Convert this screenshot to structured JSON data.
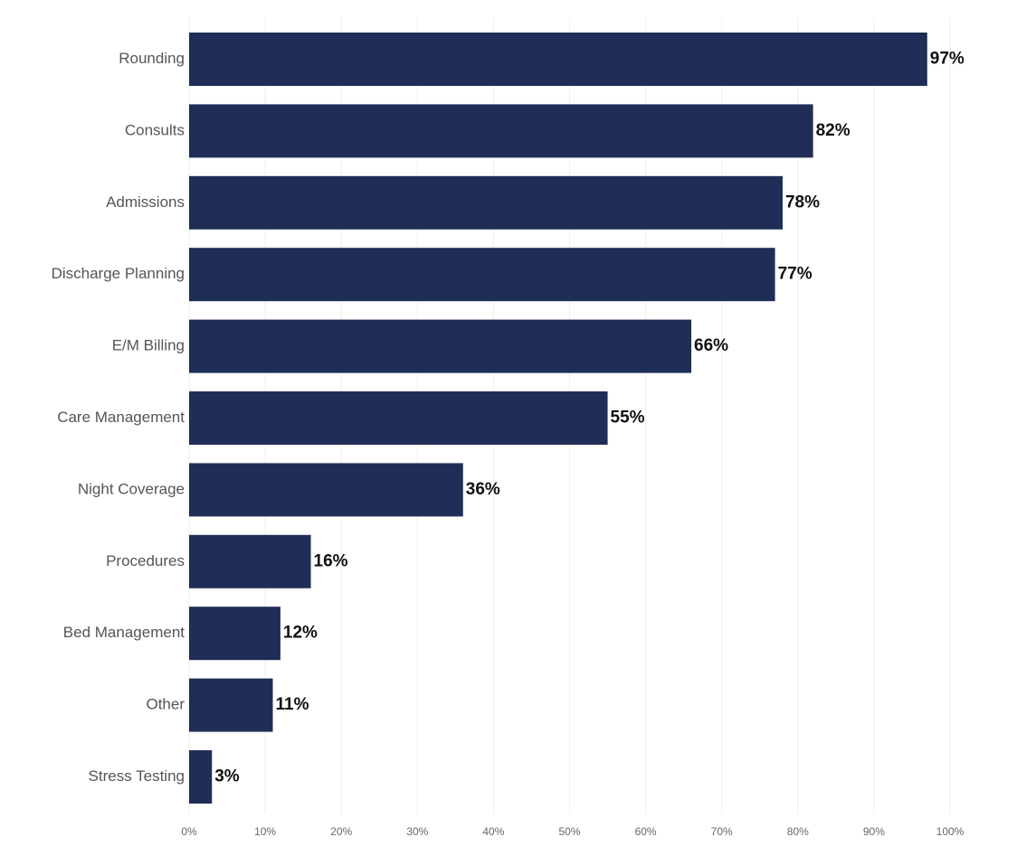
{
  "chart_data": {
    "type": "bar",
    "orientation": "horizontal",
    "title": "",
    "xlabel": "",
    "ylabel": "",
    "categories": [
      "Rounding",
      "Consults",
      "Admissions",
      "Discharge Planning",
      "E/M Billing",
      "Care Management",
      "Night Coverage",
      "Procedures",
      "Bed Management",
      "Other",
      "Stress Testing"
    ],
    "values": [
      97,
      82,
      78,
      77,
      66,
      55,
      36,
      16,
      12,
      11,
      3
    ],
    "value_labels": [
      "97%",
      "82%",
      "78%",
      "77%",
      "66%",
      "55%",
      "36%",
      "16%",
      "12%",
      "11%",
      "3%"
    ],
    "xlim": [
      0,
      100
    ],
    "x_ticks": [
      0,
      10,
      20,
      30,
      40,
      50,
      60,
      70,
      80,
      90,
      100
    ],
    "x_tick_labels": [
      "0%",
      "10%",
      "20%",
      "30%",
      "40%",
      "50%",
      "60%",
      "70%",
      "80%",
      "90%",
      "100%"
    ],
    "grid": true,
    "legend": "none",
    "colors": {
      "bar": "#1f2d57",
      "grid": "#eeeeee",
      "category_text": "#555555",
      "value_text": "#111111",
      "tick_text": "#666666"
    }
  }
}
